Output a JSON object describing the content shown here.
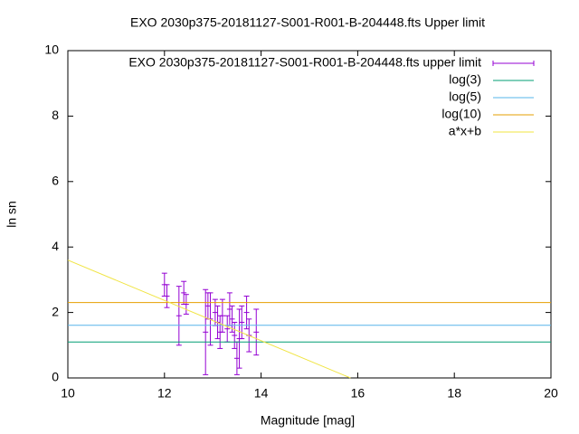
{
  "chart_data": {
    "type": "line",
    "title": "EXO 2030p375-20181127-S001-R001-B-204448.fts Upper limit",
    "x_label": "Magnitude [mag]",
    "y_label": "ln sn",
    "xlim": [
      10,
      20
    ],
    "xticks": [
      10,
      12,
      14,
      16,
      18,
      20
    ],
    "ylim": [
      0,
      10
    ],
    "yticks": [
      0,
      2,
      4,
      6,
      8,
      10
    ],
    "grid": false,
    "legend": "top-right",
    "series": [
      {
        "name": "EXO 2030p375-20181127-S001-R001-B-204448.fts upper limit",
        "style": "errorbars",
        "color": "#9400d3",
        "x": [
          12.0,
          12.05,
          12.3,
          12.4,
          12.45,
          12.85,
          12.9,
          12.95,
          13.05,
          13.1,
          13.15,
          13.2,
          13.3,
          13.35,
          13.4,
          13.45,
          13.5,
          13.55,
          13.6,
          13.7,
          13.75,
          13.9
        ],
        "values": [
          2.85,
          2.5,
          1.9,
          2.6,
          2.25,
          1.4,
          2.2,
          1.8,
          2.0,
          1.7,
          1.4,
          1.9,
          1.5,
          2.1,
          1.8,
          1.3,
          0.6,
          1.2,
          1.7,
          2.0,
          1.3,
          1.4
        ],
        "errors": [
          0.35,
          0.35,
          0.9,
          0.35,
          0.3,
          1.3,
          0.4,
          0.8,
          0.4,
          0.5,
          0.5,
          0.5,
          0.4,
          0.5,
          0.4,
          0.4,
          0.5,
          0.9,
          0.5,
          0.5,
          0.5,
          0.7
        ]
      },
      {
        "name": "log(3)",
        "style": "hline",
        "color": "#009e73",
        "value": 1.0986
      },
      {
        "name": "log(5)",
        "style": "hline",
        "color": "#56b4e9",
        "value": 1.6094
      },
      {
        "name": "log(10)",
        "style": "hline",
        "color": "#e69f00",
        "value": 2.3026
      },
      {
        "name": "a*x+b",
        "style": "line",
        "color": "#f0e442",
        "x": [
          10,
          15.85
        ],
        "values": [
          3.6,
          0
        ]
      }
    ]
  }
}
